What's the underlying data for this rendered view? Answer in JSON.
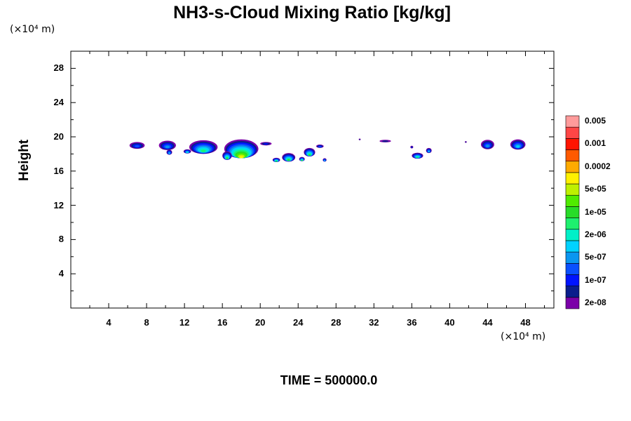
{
  "chart_data": {
    "type": "heatmap",
    "title": "NH3-s-Cloud Mixing Ratio [kg/kg]",
    "ylabel": "Height",
    "y_unit": "(×10⁴ m)",
    "x_unit": "(×10⁴ m)",
    "xlim": [
      0,
      51
    ],
    "ylim": [
      0,
      30
    ],
    "x_ticks": [
      4,
      8,
      12,
      16,
      20,
      24,
      28,
      32,
      36,
      40,
      44,
      48
    ],
    "y_ticks": [
      4,
      8,
      12,
      16,
      20,
      24,
      28
    ],
    "colorbar": {
      "colors": [
        "#7B00A8",
        "#0A1E8C",
        "#0014FF",
        "#0A50FF",
        "#0A96F0",
        "#00D2FF",
        "#00F0C8",
        "#1EF06E",
        "#28DC28",
        "#50EB00",
        "#BEF000",
        "#FFF000",
        "#FFAA00",
        "#FF5A00",
        "#FF1400",
        "#FF4646",
        "#FF9B9B"
      ],
      "labels": [
        "2e-08",
        "1e-07",
        "5e-07",
        "2e-06",
        "1e-05",
        "5e-05",
        "0.0002",
        "0.001",
        "0.005"
      ]
    },
    "clouds": [
      {
        "x": 7.0,
        "y": 19.0,
        "w": 1.6,
        "h": 0.8,
        "max_level": 3
      },
      {
        "x": 10.2,
        "y": 19.0,
        "w": 1.8,
        "h": 1.1,
        "max_level": 4
      },
      {
        "x": 10.4,
        "y": 18.2,
        "w": 0.6,
        "h": 0.6,
        "max_level": 5
      },
      {
        "x": 14.0,
        "y": 18.8,
        "w": 3.0,
        "h": 1.6,
        "max_level": 7
      },
      {
        "x": 12.3,
        "y": 18.3,
        "w": 0.8,
        "h": 0.5,
        "max_level": 6
      },
      {
        "x": 18.0,
        "y": 18.6,
        "w": 3.6,
        "h": 2.2,
        "max_level": 11
      },
      {
        "x": 16.5,
        "y": 17.8,
        "w": 1.0,
        "h": 1.0,
        "max_level": 8
      },
      {
        "x": 20.6,
        "y": 19.2,
        "w": 1.2,
        "h": 0.4,
        "max_level": 2
      },
      {
        "x": 21.7,
        "y": 17.3,
        "w": 0.8,
        "h": 0.5,
        "max_level": 8
      },
      {
        "x": 23.0,
        "y": 17.6,
        "w": 1.4,
        "h": 1.0,
        "max_level": 8
      },
      {
        "x": 25.2,
        "y": 18.2,
        "w": 1.2,
        "h": 1.0,
        "max_level": 8
      },
      {
        "x": 24.4,
        "y": 17.4,
        "w": 0.6,
        "h": 0.5,
        "max_level": 8
      },
      {
        "x": 26.3,
        "y": 18.9,
        "w": 0.8,
        "h": 0.4,
        "max_level": 3
      },
      {
        "x": 26.8,
        "y": 17.3,
        "w": 0.4,
        "h": 0.4,
        "max_level": 5
      },
      {
        "x": 30.5,
        "y": 19.7,
        "w": 0.2,
        "h": 0.2,
        "max_level": 1
      },
      {
        "x": 33.2,
        "y": 19.5,
        "w": 1.2,
        "h": 0.3,
        "max_level": 1
      },
      {
        "x": 36.6,
        "y": 17.8,
        "w": 1.2,
        "h": 0.7,
        "max_level": 7
      },
      {
        "x": 37.8,
        "y": 18.4,
        "w": 0.6,
        "h": 0.6,
        "max_level": 5
      },
      {
        "x": 36.0,
        "y": 18.8,
        "w": 0.3,
        "h": 0.3,
        "max_level": 2
      },
      {
        "x": 41.7,
        "y": 19.4,
        "w": 0.2,
        "h": 0.2,
        "max_level": 1
      },
      {
        "x": 44.0,
        "y": 19.1,
        "w": 1.4,
        "h": 1.1,
        "max_level": 4
      },
      {
        "x": 47.2,
        "y": 19.1,
        "w": 1.6,
        "h": 1.2,
        "max_level": 5
      }
    ]
  },
  "footer": {
    "time_label": "TIME = 500000.0"
  }
}
